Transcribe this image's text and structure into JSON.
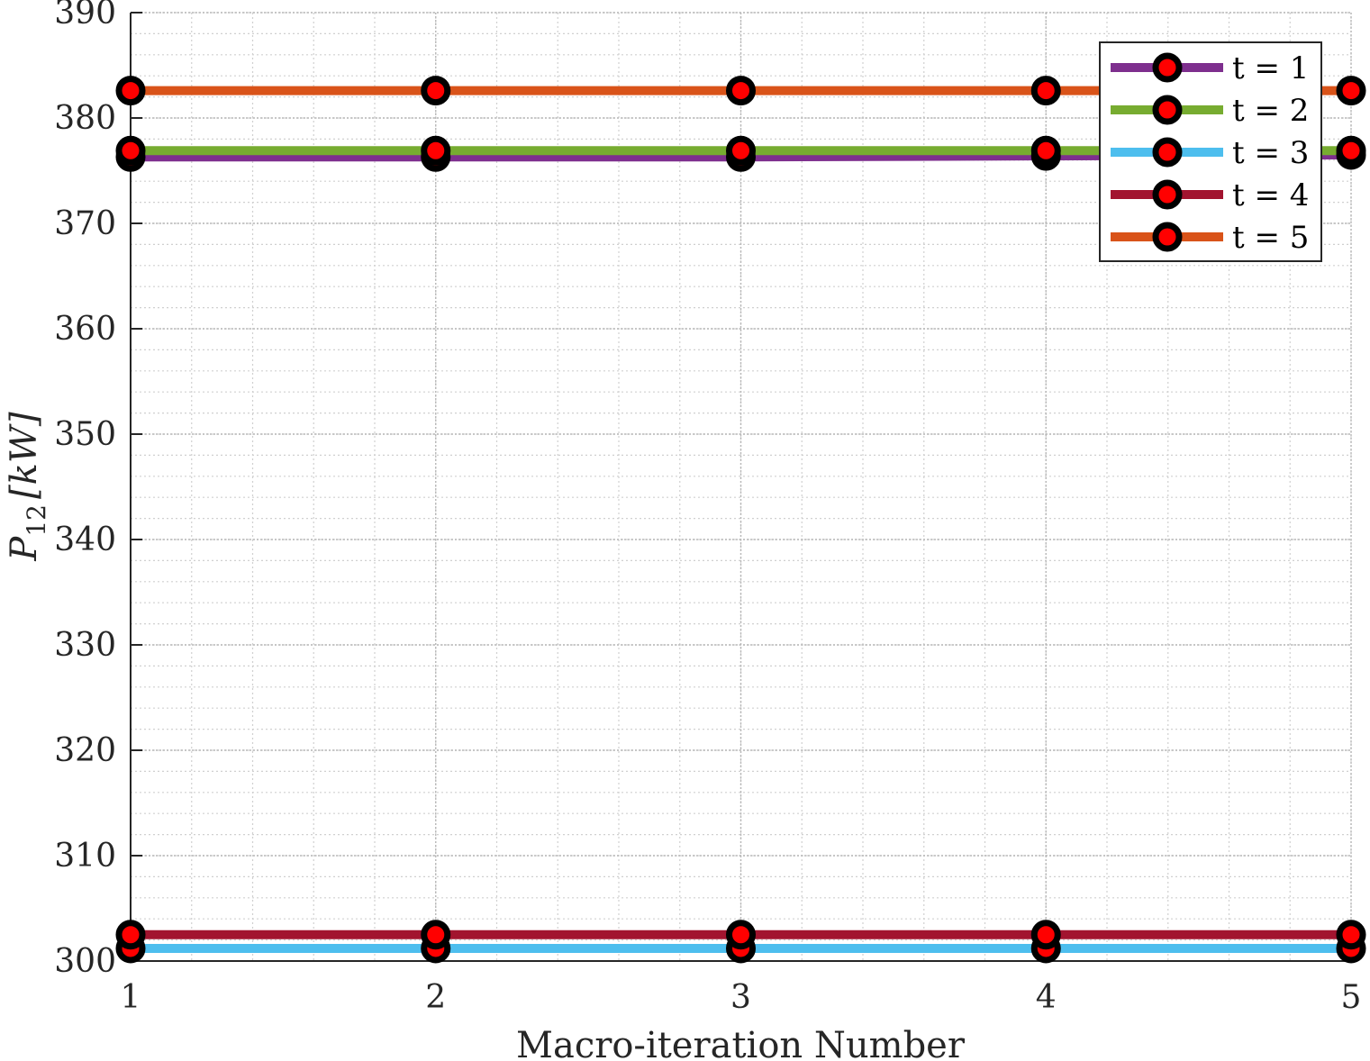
{
  "chart_data": {
    "type": "line",
    "title": "",
    "xlabel": "Macro-iteration Number",
    "ylabel": {
      "symbol": "P",
      "subscript": "12",
      "unit": "[kW]"
    },
    "x": [
      1,
      2,
      3,
      4,
      5
    ],
    "xlim": [
      1,
      5
    ],
    "ylim": [
      300,
      390
    ],
    "xticks": [
      "1",
      "2",
      "3",
      "4",
      "5"
    ],
    "yticks": [
      "300",
      "310",
      "320",
      "330",
      "340",
      "350",
      "360",
      "370",
      "380",
      "390"
    ],
    "grid": true,
    "minor_grid": true,
    "legend_position": "top-right",
    "marker": {
      "outer_color": "#000000",
      "inner_color": "#ff0000"
    },
    "series": [
      {
        "name": "t = 1",
        "color": "#7e2f8e",
        "values": [
          376.3,
          376.3,
          376.3,
          376.4,
          376.5
        ]
      },
      {
        "name": "t = 2",
        "color": "#77ac30",
        "values": [
          376.9,
          376.9,
          376.9,
          376.9,
          376.9
        ]
      },
      {
        "name": "t = 3",
        "color": "#4dbeee",
        "values": [
          301.2,
          301.2,
          301.2,
          301.2,
          301.2
        ]
      },
      {
        "name": "t = 4",
        "color": "#a2142f",
        "values": [
          302.5,
          302.5,
          302.5,
          302.5,
          302.5
        ]
      },
      {
        "name": "t = 5",
        "color": "#d95319",
        "values": [
          382.6,
          382.6,
          382.6,
          382.6,
          382.6
        ]
      }
    ]
  }
}
